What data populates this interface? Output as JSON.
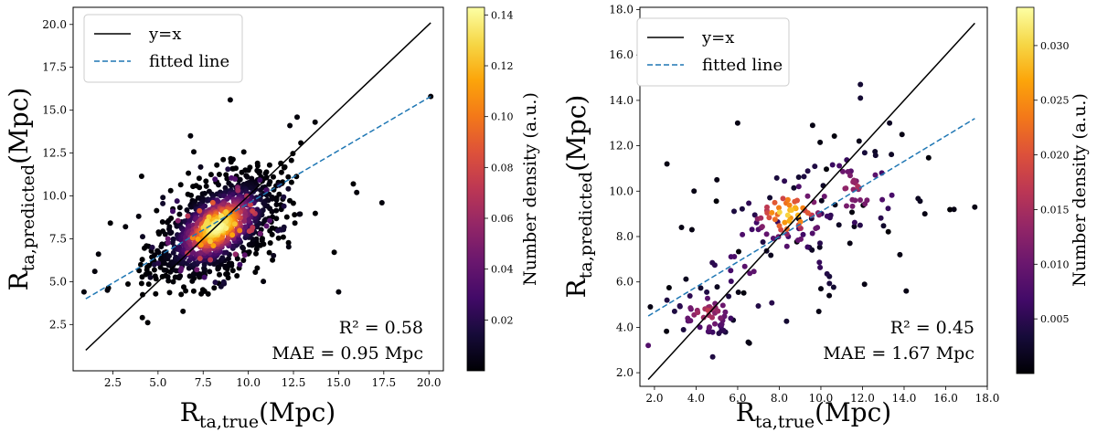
{
  "chart_data": [
    {
      "type": "scatter",
      "title": "",
      "xlabel": {
        "base": "R",
        "sub": "ta,true",
        "unit": "(Mpc)"
      },
      "ylabel": {
        "base": "R",
        "sub": "ta,predicted",
        "unit": "(Mpc)"
      },
      "xlim": [
        0.3,
        20.8
      ],
      "ylim": [
        -0.2,
        21.0
      ],
      "xticks": [
        2.5,
        5.0,
        7.5,
        10.0,
        12.5,
        15.0,
        17.5,
        20.0
      ],
      "yticks": [
        2.5,
        5.0,
        7.5,
        10.0,
        12.5,
        15.0,
        17.5,
        20.0
      ],
      "tick_decimals": 1,
      "legend": {
        "position": "top-left",
        "entries": [
          {
            "label": "y=x",
            "style": "solid",
            "color": "#000000"
          },
          {
            "label": "fitted line",
            "style": "dashed",
            "color": "#1f77b4"
          }
        ]
      },
      "identity_line": {
        "from": [
          1.0,
          1.0
        ],
        "to": [
          20.1,
          20.1
        ]
      },
      "fitted_line": {
        "from": [
          1.0,
          4.0
        ],
        "to": [
          20.1,
          15.8
        ]
      },
      "annotations": {
        "r2": "R² = 0.58",
        "mae": "MAE = 0.95 Mpc"
      },
      "colorbar": {
        "label": "Number density (a.u.)",
        "min": 0.0,
        "max": 0.143,
        "ticks": [
          0.02,
          0.04,
          0.06,
          0.08,
          0.1,
          0.12,
          0.14
        ],
        "tick_decimals": 2,
        "colormap": "inferno"
      },
      "scatter_cloud": {
        "center": [
          8.3,
          8.2
        ],
        "sd_major": 2.0,
        "sd_minor": 1.1,
        "angle_deg": 40,
        "count": 1100,
        "seed": 11
      },
      "points": [
        {
          "x": 0.9,
          "y": 4.4,
          "d": 0.002
        },
        {
          "x": 1.7,
          "y": 6.6,
          "d": 0.002
        },
        {
          "x": 3.2,
          "y": 8.2,
          "d": 0.002
        },
        {
          "x": 6.8,
          "y": 13.5,
          "d": 0.002
        },
        {
          "x": 9.0,
          "y": 15.6,
          "d": 0.002
        },
        {
          "x": 15.0,
          "y": 4.4,
          "d": 0.002
        },
        {
          "x": 16.0,
          "y": 10.2,
          "d": 0.002
        },
        {
          "x": 17.4,
          "y": 9.6,
          "d": 0.002
        },
        {
          "x": 20.1,
          "y": 15.8,
          "d": 0.002
        },
        {
          "x": 12.7,
          "y": 14.6,
          "d": 0.002
        },
        {
          "x": 13.7,
          "y": 14.3,
          "d": 0.002
        },
        {
          "x": 12.3,
          "y": 14.1,
          "d": 0.002
        },
        {
          "x": 1.5,
          "y": 5.6,
          "d": 0.002
        },
        {
          "x": 2.2,
          "y": 4.5,
          "d": 0.002
        }
      ]
    },
    {
      "type": "scatter",
      "title": "",
      "xlabel": {
        "base": "R",
        "sub": "ta,true",
        "unit": "(Mpc)"
      },
      "ylabel": {
        "base": "R",
        "sub": "ta,predicted",
        "unit": "(Mpc)"
      },
      "xlim": [
        1.3,
        18.0
      ],
      "ylim": [
        1.4,
        18.1
      ],
      "xticks": [
        2.0,
        4.0,
        6.0,
        8.0,
        10.0,
        12.0,
        14.0,
        16.0,
        18.0
      ],
      "yticks": [
        2.0,
        4.0,
        6.0,
        8.0,
        10.0,
        12.0,
        14.0,
        16.0,
        18.0
      ],
      "tick_decimals": 1,
      "legend": {
        "position": "top-left",
        "entries": [
          {
            "label": "y=x",
            "style": "solid",
            "color": "#000000"
          },
          {
            "label": "fitted line",
            "style": "dashed",
            "color": "#1f77b4"
          }
        ]
      },
      "identity_line": {
        "from": [
          1.7,
          1.7
        ],
        "to": [
          17.4,
          17.4
        ]
      },
      "fitted_line": {
        "from": [
          1.7,
          4.5
        ],
        "to": [
          17.4,
          13.2
        ]
      },
      "annotations": {
        "r2": "R² = 0.45",
        "mae": "MAE = 1.67 Mpc"
      },
      "colorbar": {
        "label": "Number density (a.u.)",
        "min": 0.0,
        "max": 0.0335,
        "ticks": [
          0.005,
          0.01,
          0.015,
          0.02,
          0.025,
          0.03
        ],
        "tick_decimals": 3,
        "colormap": "inferno"
      },
      "clusters": [
        {
          "cx": 4.5,
          "cy": 4.6,
          "sx": 0.9,
          "sy": 0.6,
          "n": 55,
          "peak": 0.018,
          "seed": 21
        },
        {
          "cx": 8.4,
          "cy": 9.0,
          "sx": 1.1,
          "sy": 0.8,
          "n": 75,
          "peak": 0.0325,
          "seed": 22
        },
        {
          "cx": 11.5,
          "cy": 10.0,
          "sx": 1.6,
          "sy": 1.0,
          "n": 55,
          "peak": 0.016,
          "seed": 23
        },
        {
          "cx": 7.5,
          "cy": 7.0,
          "sx": 2.2,
          "sy": 1.8,
          "n": 40,
          "peak": 0.011,
          "seed": 24
        }
      ],
      "points": [
        {
          "x": 1.7,
          "y": 3.2,
          "d": 0.008
        },
        {
          "x": 1.8,
          "y": 4.9,
          "d": 0.001
        },
        {
          "x": 2.6,
          "y": 11.2,
          "d": 0.001
        },
        {
          "x": 6.0,
          "y": 13.0,
          "d": 0.001
        },
        {
          "x": 3.9,
          "y": 10.0,
          "d": 0.001
        },
        {
          "x": 5.0,
          "y": 10.5,
          "d": 0.001
        },
        {
          "x": 9.6,
          "y": 12.9,
          "d": 0.001
        },
        {
          "x": 11.9,
          "y": 14.7,
          "d": 0.003
        },
        {
          "x": 11.9,
          "y": 14.1,
          "d": 0.003
        },
        {
          "x": 13.9,
          "y": 12.5,
          "d": 0.001
        },
        {
          "x": 13.3,
          "y": 13.0,
          "d": 0.002
        },
        {
          "x": 17.4,
          "y": 9.3,
          "d": 0.001
        },
        {
          "x": 16.4,
          "y": 9.2,
          "d": 0.001
        },
        {
          "x": 15.0,
          "y": 9.0,
          "d": 0.001
        },
        {
          "x": 14.1,
          "y": 5.6,
          "d": 0.001
        },
        {
          "x": 12.1,
          "y": 5.9,
          "d": 0.001
        },
        {
          "x": 10.4,
          "y": 5.4,
          "d": 0.001
        },
        {
          "x": 10.0,
          "y": 5.7,
          "d": 0.001
        },
        {
          "x": 9.9,
          "y": 4.7,
          "d": 0.001
        },
        {
          "x": 3.3,
          "y": 8.4,
          "d": 0.001
        },
        {
          "x": 3.8,
          "y": 8.3,
          "d": 0.001
        },
        {
          "x": 4.8,
          "y": 2.7,
          "d": 0.004
        },
        {
          "x": 13.8,
          "y": 7.2,
          "d": 0.001
        },
        {
          "x": 2.6,
          "y": 5.2,
          "d": 0.004
        }
      ]
    }
  ]
}
